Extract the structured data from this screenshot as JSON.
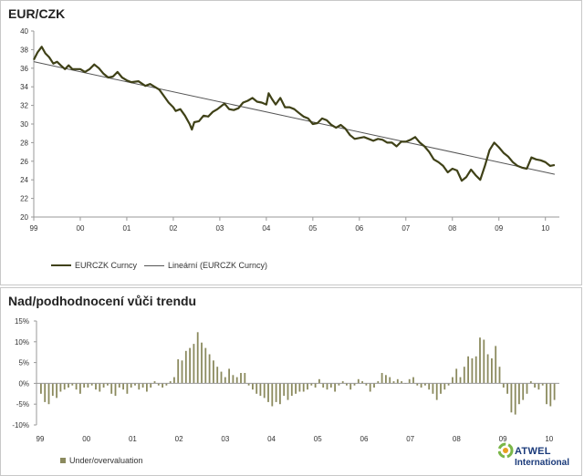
{
  "top_title": "EUR/CZK",
  "bottom_title": "Nad/podhodnocení vůči trendu",
  "legend_top": {
    "series": "EURCZK Curncy",
    "trend": "Lineární (EURCZK Curncy)"
  },
  "legend_bottom": {
    "series": "Under/overvaluation"
  },
  "logo": {
    "name": "ATWEL",
    "sub": "International"
  },
  "colors": {
    "series": "#3f4117",
    "trend": "#555555",
    "bars": "#8b8a5e",
    "axis": "#999999",
    "logo_blue": "#1a3a7a"
  },
  "chart_data": [
    {
      "type": "line",
      "title": "EUR/CZK",
      "x_tick_labels": [
        "99",
        "00",
        "01",
        "02",
        "03",
        "04",
        "05",
        "06",
        "07",
        "08",
        "09",
        "10"
      ],
      "ylim": [
        20,
        40
      ],
      "y_ticks": [
        20,
        22,
        24,
        26,
        28,
        30,
        32,
        34,
        36,
        38,
        40
      ],
      "x_range": [
        0,
        11.3
      ],
      "series": [
        {
          "name": "EURCZK Curncy",
          "points": [
            [
              0.0,
              36.9
            ],
            [
              0.08,
              37.7
            ],
            [
              0.17,
              38.3
            ],
            [
              0.25,
              37.6
            ],
            [
              0.33,
              37.2
            ],
            [
              0.42,
              36.5
            ],
            [
              0.5,
              36.7
            ],
            [
              0.58,
              36.3
            ],
            [
              0.67,
              35.9
            ],
            [
              0.75,
              36.3
            ],
            [
              0.83,
              35.9
            ],
            [
              1.0,
              35.9
            ],
            [
              1.1,
              35.6
            ],
            [
              1.2,
              35.9
            ],
            [
              1.3,
              36.4
            ],
            [
              1.4,
              36.0
            ],
            [
              1.5,
              35.4
            ],
            [
              1.6,
              35.0
            ],
            [
              1.7,
              35.1
            ],
            [
              1.8,
              35.6
            ],
            [
              1.9,
              35.0
            ],
            [
              2.0,
              34.7
            ],
            [
              2.1,
              34.5
            ],
            [
              2.25,
              34.6
            ],
            [
              2.4,
              34.1
            ],
            [
              2.5,
              34.3
            ],
            [
              2.6,
              34.0
            ],
            [
              2.7,
              33.7
            ],
            [
              2.8,
              33.0
            ],
            [
              2.9,
              32.3
            ],
            [
              3.0,
              31.8
            ],
            [
              3.05,
              31.4
            ],
            [
              3.15,
              31.6
            ],
            [
              3.25,
              30.9
            ],
            [
              3.35,
              30.0
            ],
            [
              3.4,
              29.4
            ],
            [
              3.45,
              30.2
            ],
            [
              3.55,
              30.3
            ],
            [
              3.65,
              30.9
            ],
            [
              3.75,
              30.8
            ],
            [
              3.85,
              31.3
            ],
            [
              3.95,
              31.6
            ],
            [
              4.0,
              31.8
            ],
            [
              4.1,
              32.2
            ],
            [
              4.2,
              31.6
            ],
            [
              4.3,
              31.5
            ],
            [
              4.4,
              31.7
            ],
            [
              4.5,
              32.3
            ],
            [
              4.6,
              32.5
            ],
            [
              4.7,
              32.8
            ],
            [
              4.8,
              32.4
            ],
            [
              4.9,
              32.3
            ],
            [
              5.0,
              32.1
            ],
            [
              5.05,
              33.3
            ],
            [
              5.12,
              32.7
            ],
            [
              5.2,
              32.1
            ],
            [
              5.3,
              32.8
            ],
            [
              5.4,
              31.8
            ],
            [
              5.5,
              31.8
            ],
            [
              5.6,
              31.6
            ],
            [
              5.7,
              31.2
            ],
            [
              5.8,
              30.8
            ],
            [
              5.9,
              30.6
            ],
            [
              6.0,
              30.0
            ],
            [
              6.1,
              30.1
            ],
            [
              6.2,
              30.6
            ],
            [
              6.3,
              30.4
            ],
            [
              6.4,
              29.9
            ],
            [
              6.5,
              29.6
            ],
            [
              6.6,
              29.9
            ],
            [
              6.7,
              29.5
            ],
            [
              6.8,
              28.8
            ],
            [
              6.9,
              28.4
            ],
            [
              7.0,
              28.5
            ],
            [
              7.1,
              28.6
            ],
            [
              7.2,
              28.4
            ],
            [
              7.3,
              28.2
            ],
            [
              7.4,
              28.4
            ],
            [
              7.5,
              28.3
            ],
            [
              7.6,
              28.0
            ],
            [
              7.7,
              28.0
            ],
            [
              7.8,
              27.6
            ],
            [
              7.9,
              28.1
            ],
            [
              8.0,
              28.1
            ],
            [
              8.1,
              28.3
            ],
            [
              8.2,
              28.6
            ],
            [
              8.3,
              28.0
            ],
            [
              8.4,
              27.6
            ],
            [
              8.5,
              27.0
            ],
            [
              8.6,
              26.2
            ],
            [
              8.7,
              25.9
            ],
            [
              8.8,
              25.5
            ],
            [
              8.9,
              24.8
            ],
            [
              9.0,
              25.2
            ],
            [
              9.1,
              25.0
            ],
            [
              9.2,
              23.9
            ],
            [
              9.3,
              24.3
            ],
            [
              9.4,
              25.1
            ],
            [
              9.5,
              24.5
            ],
            [
              9.6,
              24.0
            ],
            [
              9.7,
              25.5
            ],
            [
              9.8,
              27.2
            ],
            [
              9.9,
              28.0
            ],
            [
              10.0,
              27.5
            ],
            [
              10.1,
              26.9
            ],
            [
              10.2,
              26.5
            ],
            [
              10.3,
              25.9
            ],
            [
              10.4,
              25.5
            ],
            [
              10.5,
              25.3
            ],
            [
              10.6,
              25.2
            ],
            [
              10.7,
              26.4
            ],
            [
              10.8,
              26.2
            ],
            [
              10.9,
              26.1
            ],
            [
              11.0,
              25.9
            ],
            [
              11.1,
              25.5
            ],
            [
              11.2,
              25.6
            ]
          ]
        },
        {
          "name": "Lineární (EURCZK Curncy)",
          "points": [
            [
              0,
              36.7
            ],
            [
              11.2,
              24.6
            ]
          ]
        }
      ]
    },
    {
      "type": "bar",
      "title": "Nad/podhodnocení vůči trendu",
      "ylim": [
        -10,
        15
      ],
      "y_ticks": [
        -10,
        -5,
        0,
        5,
        10,
        15
      ],
      "y_tick_labels": [
        "-10%",
        "-5%",
        "0%",
        "5%",
        "10%",
        "15%"
      ],
      "x_tick_labels": [
        "99",
        "00",
        "01",
        "02",
        "03",
        "04",
        "05",
        "06",
        "07",
        "08",
        "09",
        "10"
      ],
      "x_range": [
        0,
        11.3
      ],
      "series": [
        {
          "name": "Under/overvaluation",
          "values": [
            -2.5,
            -4.5,
            -5.0,
            -3.0,
            -3.5,
            -2.0,
            -1.5,
            -1.0,
            -0.5,
            -1.5,
            -2.5,
            -1.0,
            -1.0,
            -0.5,
            -1.5,
            -2.0,
            -1.0,
            -0.5,
            -2.5,
            -3.0,
            -1.0,
            -1.5,
            -2.5,
            -1.0,
            -0.5,
            -1.5,
            -1.0,
            -2.0,
            -1.0,
            0.5,
            -0.5,
            -1.0,
            -0.5,
            0.5,
            1.5,
            5.8,
            5.5,
            7.8,
            8.5,
            9.5,
            12.3,
            9.8,
            8.5,
            7.0,
            5.5,
            4.0,
            2.8,
            1.5,
            3.5,
            2.0,
            1.5,
            2.5,
            2.5,
            -0.5,
            -1.5,
            -2.5,
            -3.0,
            -3.5,
            -4.5,
            -5.5,
            -4.5,
            -5.0,
            -3.0,
            -4.0,
            -3.0,
            -2.5,
            -2.0,
            -2.0,
            -1.5,
            -0.5,
            -1.0,
            1.0,
            -1.0,
            -1.5,
            -1.0,
            -2.0,
            -0.5,
            0.5,
            -0.5,
            -1.5,
            -0.5,
            1.0,
            0.5,
            -0.5,
            -2.0,
            -1.0,
            0.5,
            2.5,
            2.0,
            1.5,
            0.5,
            1.0,
            0.5,
            0.0,
            1.0,
            1.5,
            -0.5,
            -1.0,
            -0.5,
            -1.5,
            -2.5,
            -4.0,
            -2.5,
            -1.5,
            -0.5,
            1.5,
            3.5,
            1.5,
            4.0,
            6.5,
            6.0,
            6.5,
            11.0,
            10.5,
            7.0,
            6.0,
            9.0,
            4.0,
            -1.0,
            -2.5,
            -7.0,
            -7.5,
            -5.0,
            -4.0,
            -2.5,
            0.5,
            -1.0,
            -1.5,
            -0.5,
            -5.0,
            -5.5,
            -4.0
          ]
        }
      ]
    }
  ]
}
